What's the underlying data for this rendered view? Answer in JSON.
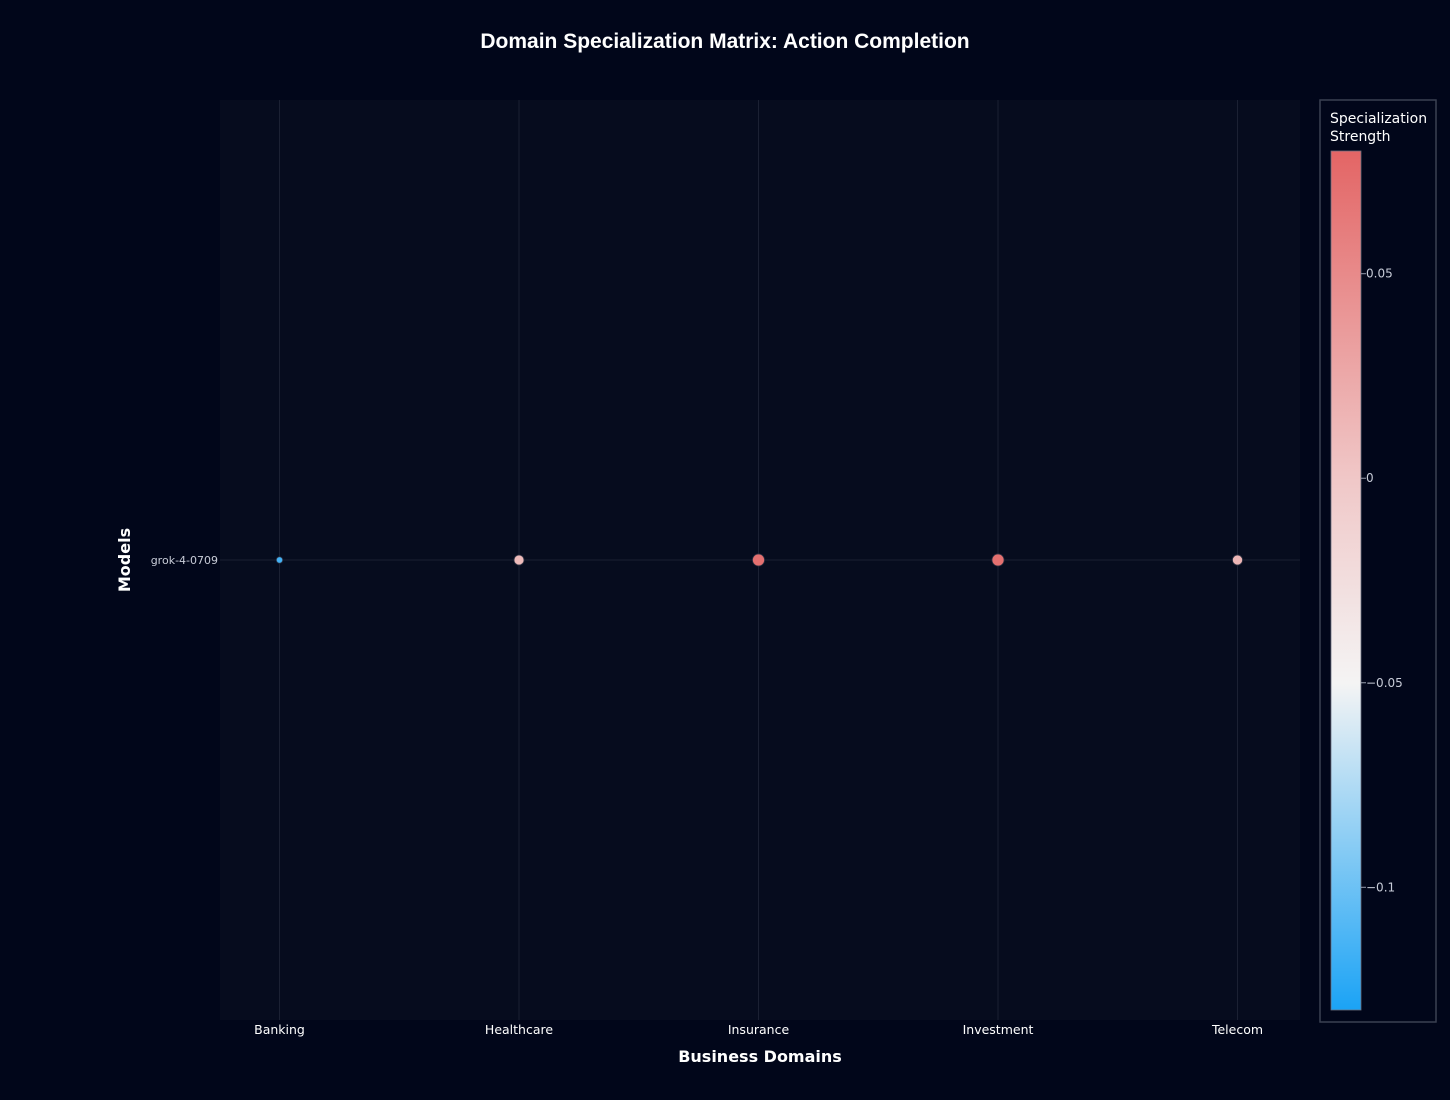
{
  "chart_data": {
    "type": "scatter",
    "title": "Domain Specialization Matrix: Action Completion",
    "xlabel": "Business Domains",
    "ylabel": "Models",
    "categories": [
      "Banking",
      "Healthcare",
      "Insurance",
      "Investment",
      "Telecom"
    ],
    "y_categories": [
      "grok-4-0709"
    ],
    "series": [
      {
        "values": [
          -0.115,
          0.003,
          0.07,
          0.07,
          0.006
        ]
      }
    ],
    "colorbar": {
      "title_lines": [
        "Specialization",
        "Strength"
      ],
      "range": [
        -0.13,
        0.08
      ],
      "ticks": [
        0.05,
        0,
        -0.05,
        -0.1
      ],
      "tick_labels": [
        "0.05",
        "0",
        "−0.05",
        "−0.1"
      ]
    },
    "grid": true,
    "legend": "none"
  },
  "colors": {
    "background": "#01061a",
    "plot_background": "#060c1e",
    "grid": "#1b2133",
    "scale_top": "#e36565",
    "scale_mid": "#f4f4f4",
    "scale_bottom": "#1ba3f5"
  }
}
